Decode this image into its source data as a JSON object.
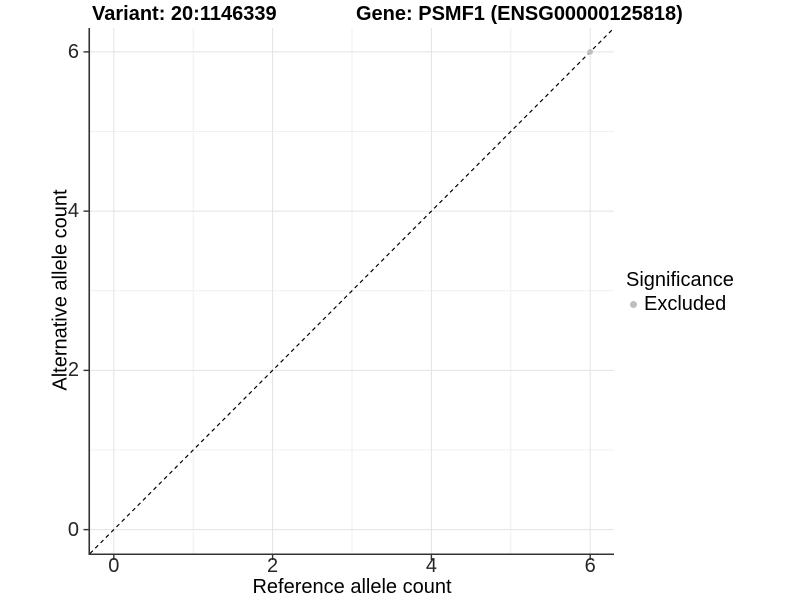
{
  "header": {
    "title_variant": "Variant: 20:1146339",
    "title_gene": "Gene: PSMF1 (ENSG00000125818)"
  },
  "chart_data": {
    "type": "scatter",
    "title_left": "Variant: 20:1146339",
    "title_right": "Gene: PSMF1 (ENSG00000125818)",
    "xlabel": "Reference allele count",
    "ylabel": "Alternative allele count",
    "xlim": [
      -0.3,
      6.3
    ],
    "ylim": [
      -0.3,
      6.3
    ],
    "x_ticks": [
      0,
      2,
      4,
      6
    ],
    "y_ticks": [
      0,
      2,
      4,
      6
    ],
    "x_minor_ticks": [
      1,
      3,
      5
    ],
    "y_minor_ticks": [
      1,
      3,
      5
    ],
    "grid": true,
    "reference_line": {
      "type": "abline",
      "slope": 1,
      "intercept": 0,
      "style": "dashed",
      "color": "#000000"
    },
    "series": [
      {
        "name": "Excluded",
        "color": "#bebebe",
        "points": [
          {
            "x": 6,
            "y": 6
          }
        ]
      }
    ],
    "legend": {
      "title": "Significance",
      "position": "right",
      "items": [
        {
          "label": "Excluded",
          "color": "#bebebe"
        }
      ]
    }
  },
  "colors": {
    "background": "#ffffff",
    "axis_line": "#333333",
    "grid_major": "#e3e3e3",
    "grid_minor": "#f0f0f0",
    "tick_text": "#262626",
    "excluded": "#bebebe"
  }
}
